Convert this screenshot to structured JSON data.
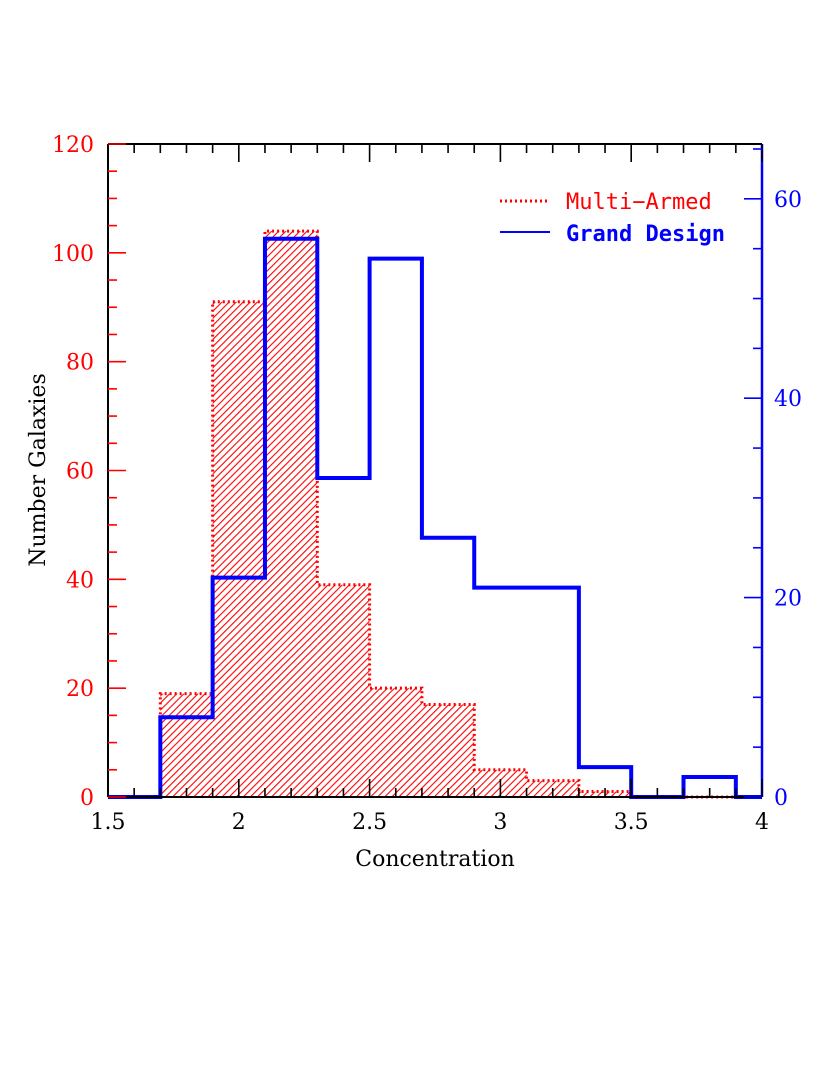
{
  "chart_data": {
    "type": "histogram",
    "xlabel": "Concentration",
    "ylabel": "Number Galaxies",
    "xlim": [
      1.5,
      4
    ],
    "ylim_left": [
      0,
      120
    ],
    "ylim_right": [
      0,
      65.5
    ],
    "x_ticks": [
      "1.5",
      "2",
      "2.5",
      "3",
      "3.5",
      "4"
    ],
    "y_ticks_left": [
      "0",
      "20",
      "40",
      "60",
      "80",
      "100",
      "120"
    ],
    "y_ticks_right": [
      "0",
      "20",
      "40",
      "60"
    ],
    "bin_edges": [
      1.5,
      1.7,
      1.9,
      2.1,
      2.3,
      2.5,
      2.7,
      2.9,
      3.1,
      3.3,
      3.5,
      3.7,
      3.9,
      4.0
    ],
    "series": [
      {
        "name": "Multi−Armed",
        "axis": "left",
        "style": "dotted-hatched",
        "color": "#ff0000",
        "values": [
          0,
          19,
          91,
          104,
          39,
          20,
          17,
          5,
          3,
          1,
          0,
          0,
          0
        ]
      },
      {
        "name": "Grand Design",
        "axis": "right",
        "style": "solid",
        "color": "#0000ff",
        "values": [
          0,
          8,
          22,
          56,
          32,
          54,
          26,
          21,
          21,
          3,
          0,
          2,
          0
        ]
      }
    ],
    "legend_position": "top-right",
    "left_axis_color": "#ff0000",
    "right_axis_color": "#0000ff"
  }
}
